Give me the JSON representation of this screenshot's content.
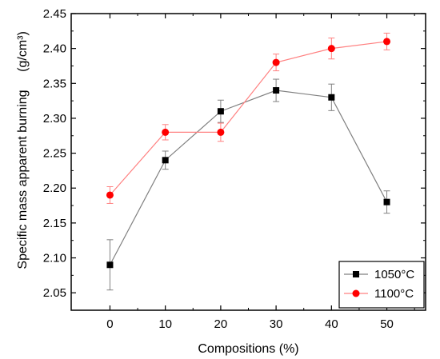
{
  "chart_data": {
    "type": "line",
    "x": [
      0,
      10,
      20,
      30,
      40,
      50
    ],
    "x_ticks": [
      "0",
      "10",
      "20",
      "30",
      "40",
      "50"
    ],
    "y_ticks": [
      "2.05",
      "2.10",
      "2.15",
      "2.20",
      "2.25",
      "2.30",
      "2.35",
      "2.40",
      "2.45"
    ],
    "xlim": [
      -7,
      57
    ],
    "ylim": [
      2.025,
      2.45
    ],
    "xlabel": "Compositions (%)",
    "ylabel": "Specific mass apparent burning",
    "ylabel_unit": "(g/cm³)",
    "legend_position": "bottom-right",
    "grid": false,
    "series": [
      {
        "name": "1050°C",
        "marker": "square",
        "color": "#000000",
        "line_color": "#808080",
        "values": [
          2.09,
          2.24,
          2.31,
          2.34,
          2.33,
          2.18
        ],
        "error": [
          0.036,
          0.013,
          0.016,
          0.016,
          0.019,
          0.016
        ]
      },
      {
        "name": "1100°C",
        "marker": "circle",
        "color": "#ff0000",
        "line_color": "#ff8080",
        "values": [
          2.19,
          2.28,
          2.28,
          2.38,
          2.4,
          2.41
        ],
        "error": [
          0.012,
          0.011,
          0.013,
          0.012,
          0.015,
          0.012
        ]
      }
    ]
  }
}
